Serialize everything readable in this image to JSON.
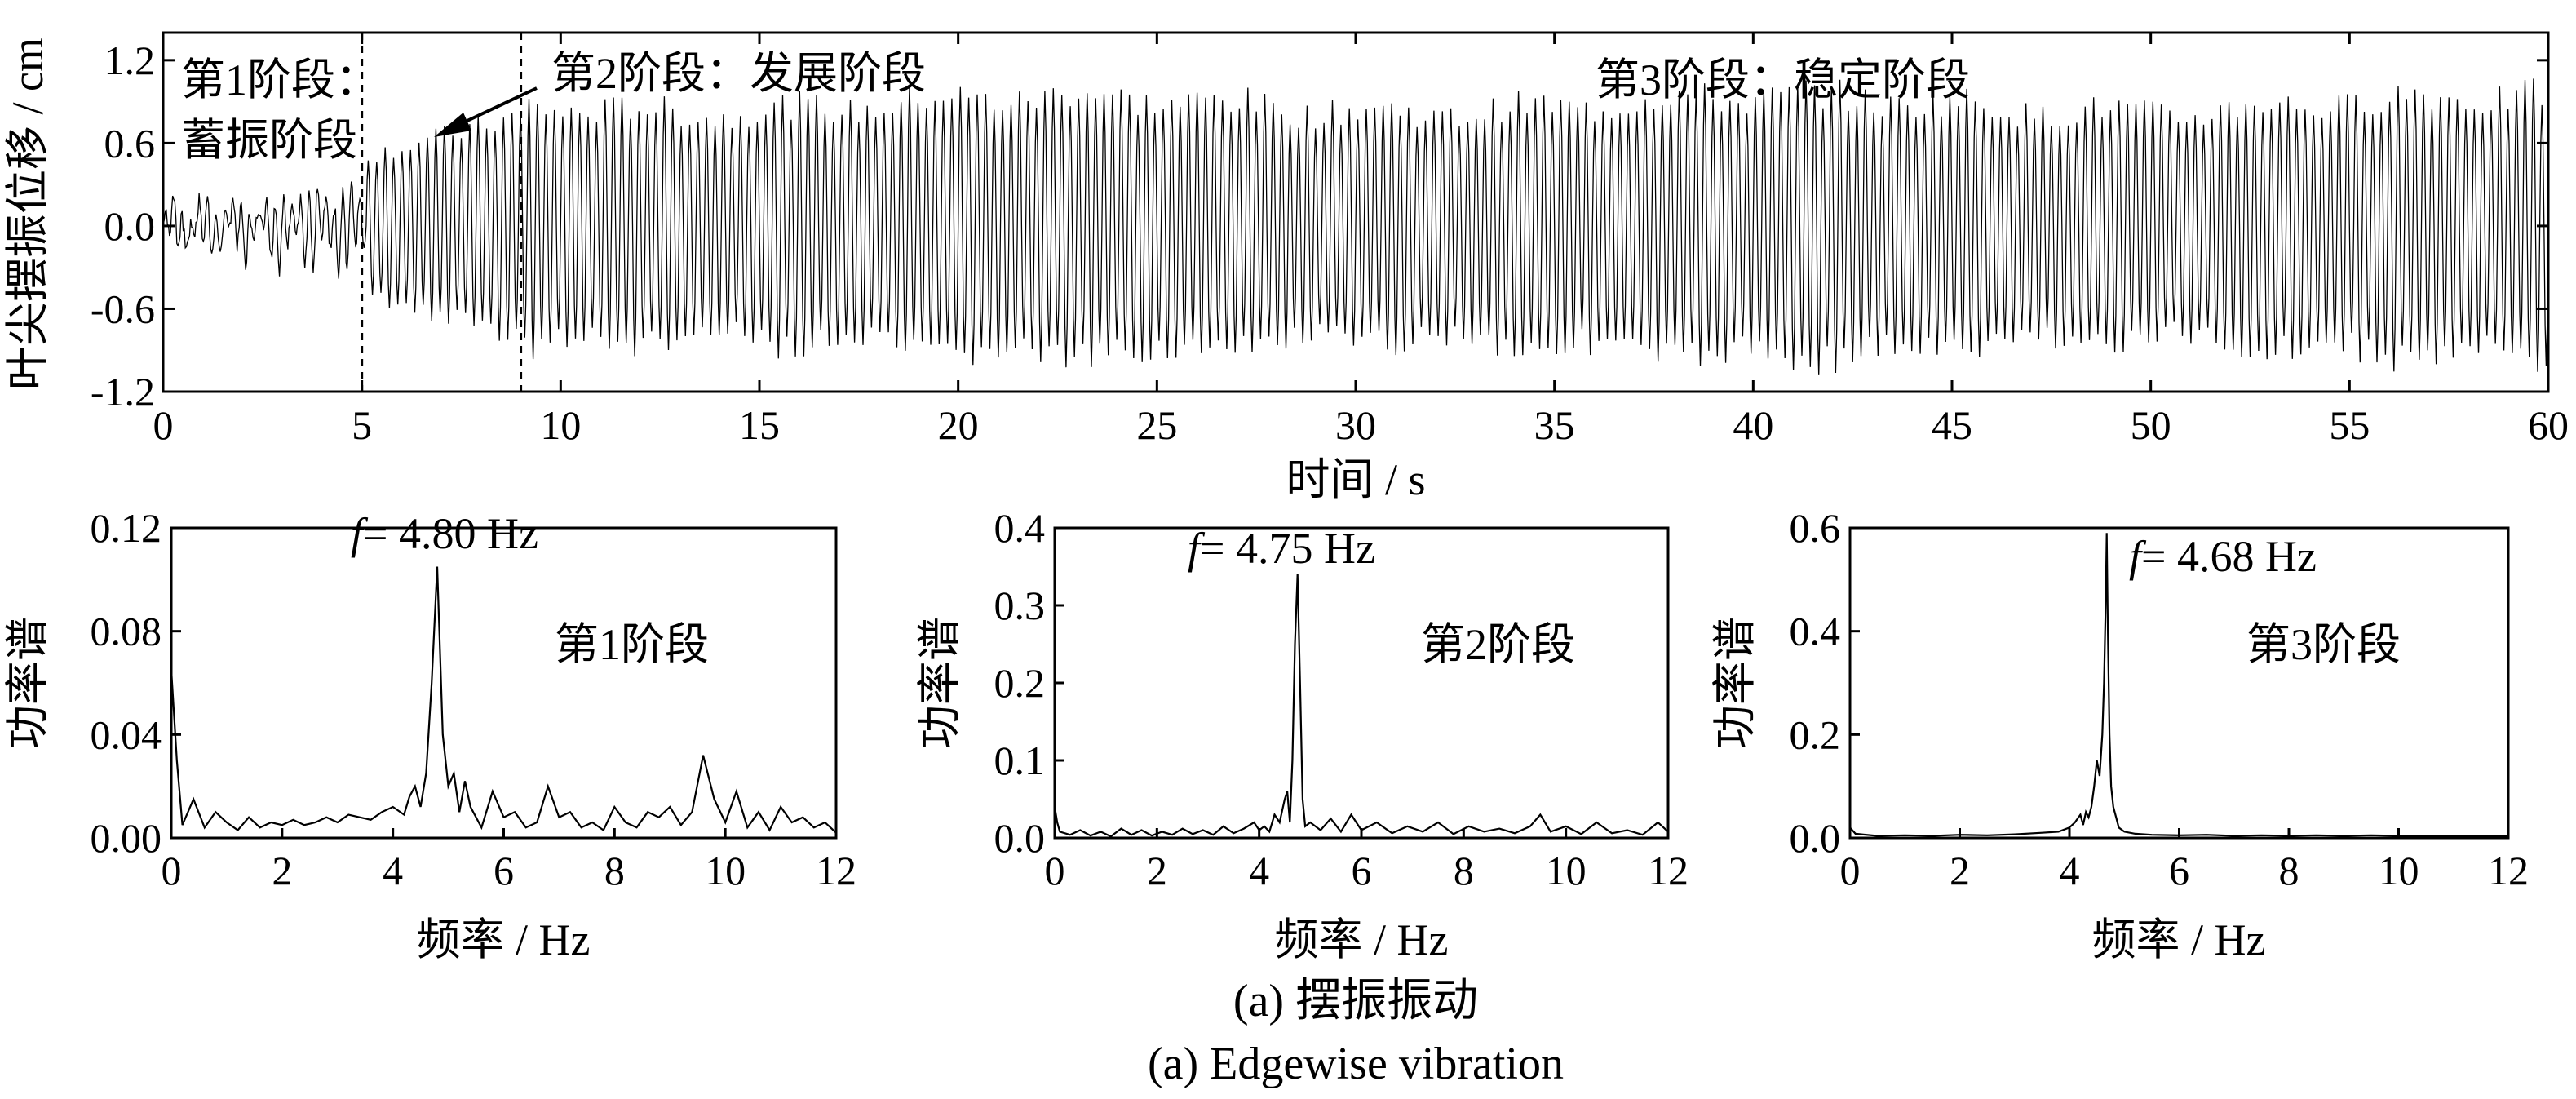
{
  "chart_data": [
    {
      "type": "line",
      "ylabel": "叶尖摆振位移 / cm",
      "xlabel": "时间 / s",
      "xlim": [
        0,
        60
      ],
      "ylim": [
        -1.2,
        1.4
      ],
      "xticks": [
        0,
        5,
        10,
        15,
        20,
        25,
        30,
        35,
        40,
        45,
        50,
        55,
        60
      ],
      "yticks": [
        -1.2,
        -0.6,
        0.0,
        0.6,
        1.2
      ],
      "ytick_labels": [
        "-1.2",
        "-0.6",
        "0.0",
        "0.6",
        "1.2"
      ],
      "grid": false,
      "dividers": [
        5.0,
        9.0
      ],
      "stages": [
        {
          "line1": "第1阶段：",
          "line2": "蓄振阶段",
          "range": [
            0,
            5
          ],
          "amplitude": [
            0.1,
            0.25
          ]
        },
        {
          "label": "第2阶段：发展阶段",
          "range": [
            5,
            9
          ],
          "amplitude": [
            0.5,
            0.8
          ]
        },
        {
          "label": "第3阶段：稳定阶段",
          "range": [
            9,
            60
          ],
          "amplitude": [
            0.8,
            0.95
          ]
        }
      ],
      "signal_frequency_hz": 4.7
    },
    {
      "type": "line",
      "ylabel": "功率谱",
      "xlabel": "频率 / Hz",
      "xlim": [
        0,
        12
      ],
      "ylim": [
        0,
        0.12
      ],
      "xticks": [
        0,
        2,
        4,
        6,
        8,
        10,
        12
      ],
      "yticks": [
        0.0,
        0.04,
        0.08,
        0.12
      ],
      "ytick_labels": [
        "0.00",
        "0.04",
        "0.08",
        "0.12"
      ],
      "peak_label": "= 4.80 Hz",
      "peak_symbol": "f",
      "stage_label": "第1阶段",
      "x": [
        0,
        0.1,
        0.2,
        0.4,
        0.6,
        0.8,
        1.0,
        1.2,
        1.4,
        1.6,
        1.8,
        2.0,
        2.2,
        2.4,
        2.6,
        2.8,
        3.0,
        3.2,
        3.4,
        3.6,
        3.8,
        4.0,
        4.2,
        4.3,
        4.4,
        4.5,
        4.6,
        4.7,
        4.8,
        4.9,
        5.0,
        5.1,
        5.2,
        5.3,
        5.4,
        5.6,
        5.8,
        6.0,
        6.2,
        6.4,
        6.6,
        6.8,
        7.0,
        7.2,
        7.4,
        7.6,
        7.8,
        8.0,
        8.2,
        8.4,
        8.6,
        8.8,
        9.0,
        9.2,
        9.4,
        9.6,
        9.8,
        10.0,
        10.2,
        10.4,
        10.6,
        10.8,
        11.0,
        11.2,
        11.4,
        11.6,
        11.8,
        12.0
      ],
      "values": [
        0.065,
        0.03,
        0.005,
        0.015,
        0.004,
        0.01,
        0.006,
        0.003,
        0.008,
        0.004,
        0.006,
        0.005,
        0.007,
        0.005,
        0.006,
        0.008,
        0.006,
        0.009,
        0.008,
        0.007,
        0.01,
        0.012,
        0.009,
        0.016,
        0.02,
        0.012,
        0.025,
        0.06,
        0.105,
        0.04,
        0.02,
        0.025,
        0.01,
        0.022,
        0.012,
        0.004,
        0.018,
        0.008,
        0.01,
        0.004,
        0.006,
        0.02,
        0.008,
        0.01,
        0.004,
        0.006,
        0.003,
        0.012,
        0.006,
        0.004,
        0.01,
        0.008,
        0.012,
        0.005,
        0.01,
        0.032,
        0.015,
        0.006,
        0.018,
        0.004,
        0.01,
        0.003,
        0.012,
        0.006,
        0.008,
        0.004,
        0.006,
        0.002
      ]
    },
    {
      "type": "line",
      "ylabel": "功率谱",
      "xlabel": "频率 / Hz",
      "xlim": [
        0,
        12
      ],
      "ylim": [
        0,
        0.4
      ],
      "xticks": [
        0,
        2,
        4,
        6,
        8,
        10,
        12
      ],
      "yticks": [
        0.0,
        0.1,
        0.2,
        0.3,
        0.4
      ],
      "ytick_labels": [
        "0.0",
        "0.1",
        "0.2",
        "0.3",
        "0.4"
      ],
      "peak_label": "= 4.75 Hz",
      "peak_symbol": "f",
      "stage_label": "第2阶段",
      "x": [
        0,
        0.05,
        0.1,
        0.3,
        0.5,
        0.7,
        0.9,
        1.1,
        1.3,
        1.5,
        1.7,
        1.9,
        2.1,
        2.3,
        2.5,
        2.7,
        2.9,
        3.1,
        3.3,
        3.5,
        3.7,
        3.9,
        4.0,
        4.1,
        4.2,
        4.3,
        4.4,
        4.5,
        4.55,
        4.6,
        4.65,
        4.7,
        4.75,
        4.8,
        4.85,
        4.9,
        5.0,
        5.2,
        5.4,
        5.6,
        5.8,
        6.0,
        6.3,
        6.6,
        6.9,
        7.2,
        7.5,
        7.8,
        8.1,
        8.4,
        8.7,
        9.0,
        9.3,
        9.5,
        9.7,
        10.0,
        10.3,
        10.6,
        10.9,
        11.2,
        11.5,
        11.8,
        12.0
      ],
      "values": [
        0.04,
        0.02,
        0.008,
        0.004,
        0.01,
        0.003,
        0.008,
        0.002,
        0.012,
        0.004,
        0.01,
        0.003,
        0.008,
        0.004,
        0.012,
        0.005,
        0.01,
        0.004,
        0.015,
        0.006,
        0.012,
        0.02,
        0.01,
        0.015,
        0.008,
        0.03,
        0.02,
        0.05,
        0.06,
        0.02,
        0.1,
        0.25,
        0.34,
        0.2,
        0.05,
        0.015,
        0.02,
        0.01,
        0.025,
        0.008,
        0.03,
        0.01,
        0.02,
        0.006,
        0.015,
        0.008,
        0.02,
        0.005,
        0.015,
        0.008,
        0.012,
        0.006,
        0.015,
        0.03,
        0.008,
        0.015,
        0.005,
        0.02,
        0.006,
        0.01,
        0.004,
        0.02,
        0.008
      ]
    },
    {
      "type": "line",
      "ylabel": "功率谱",
      "xlabel": "频率 / Hz",
      "xlim": [
        0,
        12
      ],
      "ylim": [
        0,
        0.6
      ],
      "xticks": [
        0,
        2,
        4,
        6,
        8,
        10,
        12
      ],
      "yticks": [
        0.0,
        0.2,
        0.4,
        0.6
      ],
      "ytick_labels": [
        "0.0",
        "0.2",
        "0.4",
        "0.6"
      ],
      "peak_label": "= 4.68 Hz",
      "peak_symbol": "f",
      "stage_label": "第3阶段",
      "x": [
        0,
        0.1,
        0.5,
        1.0,
        1.5,
        2.0,
        2.5,
        3.0,
        3.5,
        3.8,
        4.0,
        4.1,
        4.2,
        4.25,
        4.3,
        4.35,
        4.4,
        4.45,
        4.5,
        4.55,
        4.6,
        4.63,
        4.66,
        4.68,
        4.7,
        4.73,
        4.76,
        4.8,
        4.85,
        4.9,
        5.0,
        5.2,
        5.5,
        6.0,
        6.5,
        7.0,
        7.5,
        8.0,
        8.5,
        9.0,
        9.5,
        10.0,
        10.5,
        11.0,
        11.5,
        12.0
      ],
      "values": [
        0.02,
        0.008,
        0.004,
        0.005,
        0.004,
        0.006,
        0.005,
        0.007,
        0.01,
        0.012,
        0.02,
        0.03,
        0.045,
        0.025,
        0.05,
        0.04,
        0.06,
        0.1,
        0.15,
        0.12,
        0.2,
        0.3,
        0.45,
        0.59,
        0.4,
        0.2,
        0.1,
        0.06,
        0.04,
        0.02,
        0.012,
        0.008,
        0.006,
        0.005,
        0.006,
        0.004,
        0.005,
        0.004,
        0.005,
        0.004,
        0.005,
        0.004,
        0.004,
        0.003,
        0.004,
        0.003
      ]
    }
  ],
  "captions": {
    "cn": "(a) 摆振振动",
    "en": "(a) Edgewise vibration"
  }
}
